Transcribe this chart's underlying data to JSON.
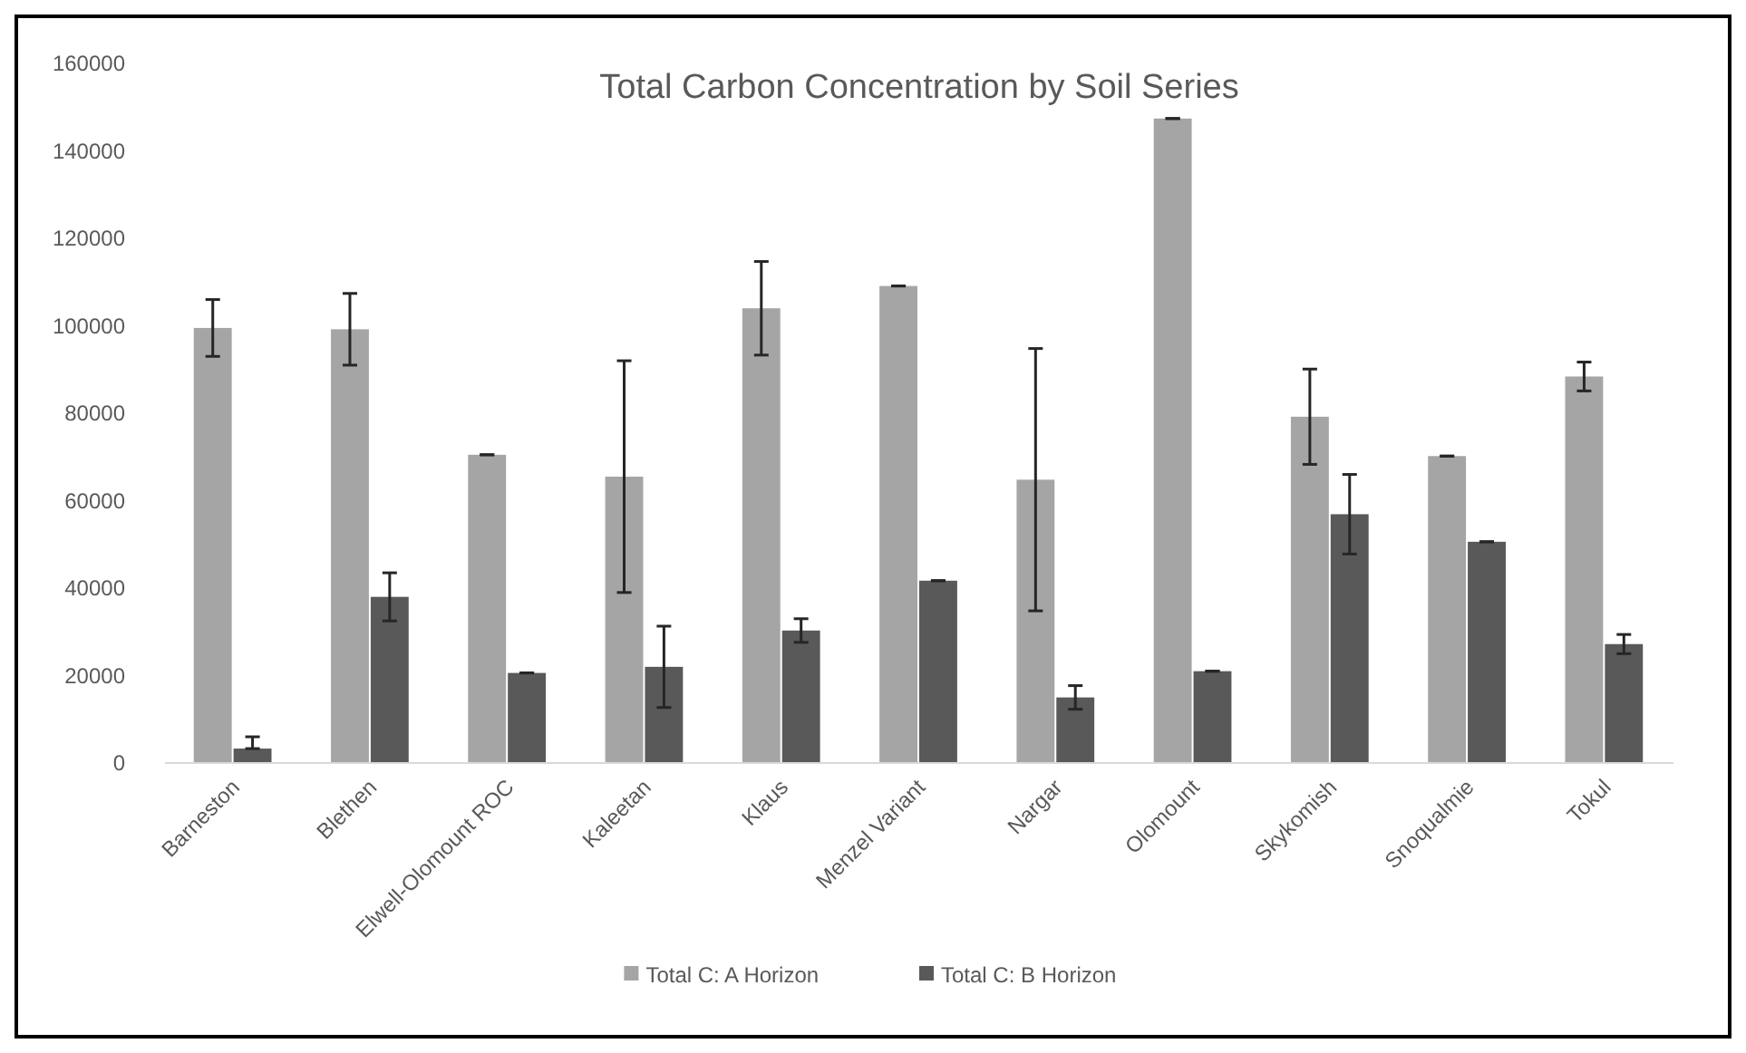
{
  "chart_data": {
    "type": "bar",
    "title": "Total Carbon Concentration by Soil Series",
    "categories": [
      "Barneston",
      "Blethen",
      "Elwell-Olomount ROC",
      "Kaleetan",
      "Klaus",
      "Menzel Variant",
      "Nargar",
      "Olomount",
      "Skykomish",
      "Snoqualmie",
      "Tokul"
    ],
    "series": [
      {
        "name": "Total C: A Horizon",
        "color": "#a5a5a5",
        "values": [
          99500,
          99200,
          70500,
          65500,
          104000,
          109100,
          64800,
          147400,
          79200,
          70200,
          88400
        ],
        "errors": [
          6500,
          8200,
          0,
          26500,
          10700,
          0,
          30000,
          0,
          10900,
          0,
          3300
        ]
      },
      {
        "name": "Total C: B Horizon",
        "color": "#595959",
        "values": [
          3300,
          38000,
          20600,
          22000,
          30300,
          41700,
          15000,
          21000,
          56900,
          50600,
          27200
        ],
        "errors": [
          [
            3300,
            6000
          ],
          5500,
          0,
          9300,
          2700,
          0,
          2700,
          0,
          9100,
          0,
          2200
        ]
      }
    ],
    "ylim": [
      0,
      160000
    ],
    "yticks": [
      0,
      20000,
      40000,
      60000,
      80000,
      100000,
      120000,
      140000,
      160000
    ],
    "grid": false,
    "legend": "bottom"
  }
}
